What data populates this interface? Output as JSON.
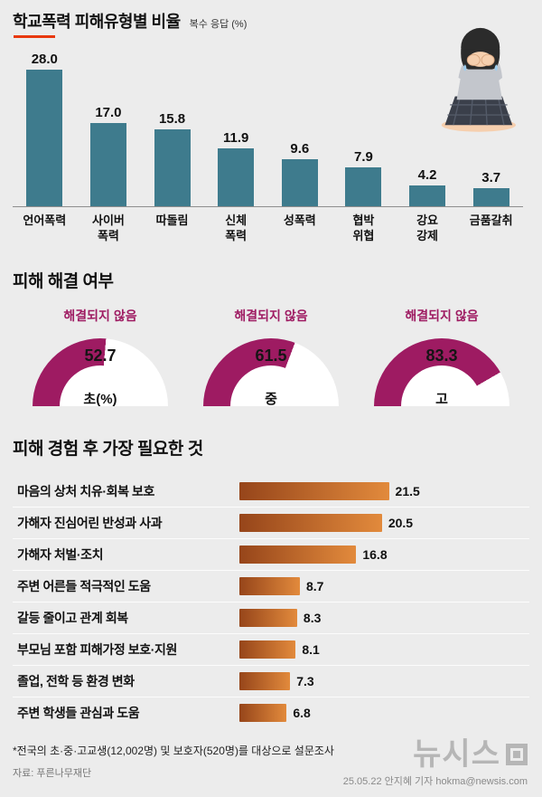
{
  "header": {
    "title": "학교폭력 피해유형별 비율",
    "unit_note": "복수 응답 (%)"
  },
  "sections": {
    "resolution": {
      "title": "피해 해결 여부"
    },
    "needs": {
      "title": "피해 경험 후 가장 필요한 것"
    }
  },
  "colors": {
    "background": "#ececec",
    "bar_teal": "#3e7b8d",
    "gauge_magenta": "#9e1b62",
    "hbar_dark": "#96451a",
    "hbar_light": "#e28a3c",
    "accent_red": "#e8380d"
  },
  "chart_data": [
    {
      "type": "bar",
      "title": "학교폭력 피해유형별 비율",
      "unit": "복수 응답 (%)",
      "categories": [
        "언어폭력",
        "사이버\n폭력",
        "따돌림",
        "신체\n폭력",
        "성폭력",
        "협박\n위협",
        "강요\n강제",
        "금품갈취"
      ],
      "values": [
        28.0,
        17.0,
        15.8,
        11.9,
        9.6,
        7.9,
        4.2,
        3.7
      ],
      "ylim": [
        0,
        30
      ],
      "bar_color": "#3e7b8d",
      "grid": false,
      "value_labels": true
    },
    {
      "type": "pie",
      "subtype": "half-donut-gauge",
      "title": "피해 해결 여부",
      "status_label": "해결되지 않음",
      "categories": [
        "초(%)",
        "중",
        "고"
      ],
      "values": [
        52.7,
        61.5,
        83.3
      ],
      "max": 100,
      "fill_color": "#9e1b62",
      "track_color": "#ffffff"
    },
    {
      "type": "bar",
      "subtype": "horizontal",
      "title": "피해 경험 후 가장 필요한 것",
      "categories": [
        "마음의 상처 치유·회복 보호",
        "가해자 진심어린 반성과 사과",
        "가해자 처벌·조치",
        "주변 어른들 적극적인 도움",
        "갈등 줄이고 관계 회복",
        "부모님 포함 피해가정 보호·지원",
        "졸업, 전학 등 환경 변화",
        "주변 학생들 관심과 도움"
      ],
      "values": [
        21.5,
        20.5,
        16.8,
        8.7,
        8.3,
        8.1,
        7.3,
        6.8
      ],
      "xlim": [
        0,
        25
      ],
      "bar_color_start": "#96451a",
      "bar_color_end": "#e28a3c",
      "value_labels": true
    }
  ],
  "footer": {
    "footnote": "*전국의 초·중·고교생(12,002명) 및 보호자(520명)를 대상으로 설문조사",
    "source": "자료: 푸른나무재단",
    "logo_text": "뉴시스",
    "credit": "25.05.22 안지혜 기자 hokma@newsis.com"
  }
}
